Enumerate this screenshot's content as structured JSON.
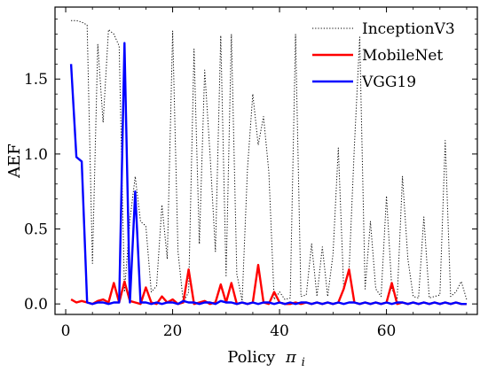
{
  "chart_data": {
    "type": "line",
    "title": "",
    "xlabel": "Policy",
    "xlabel_symbol": "π",
    "xlabel_subscript": "i",
    "ylabel": "AEF",
    "xlim": [
      -2,
      77
    ],
    "ylim": [
      -0.07,
      1.98
    ],
    "xticks": [
      0,
      20,
      40,
      60
    ],
    "yticks": [
      0.0,
      0.5,
      1.0,
      1.5
    ],
    "ytick_labels": [
      "0.0",
      "0.5",
      "1.0",
      "1.5"
    ],
    "grid": false,
    "legend_position": "top-right",
    "x": [
      1,
      2,
      3,
      4,
      5,
      6,
      7,
      8,
      9,
      10,
      11,
      12,
      13,
      14,
      15,
      16,
      17,
      18,
      19,
      20,
      21,
      22,
      23,
      24,
      25,
      26,
      27,
      28,
      29,
      30,
      31,
      32,
      33,
      34,
      35,
      36,
      37,
      38,
      39,
      40,
      41,
      42,
      43,
      44,
      45,
      46,
      47,
      48,
      49,
      50,
      51,
      52,
      53,
      54,
      55,
      56,
      57,
      58,
      59,
      60,
      61,
      62,
      63,
      64,
      65,
      66,
      67,
      68,
      69,
      70,
      71,
      72,
      73,
      74,
      75
    ],
    "series": [
      {
        "name": "InceptionV3",
        "color": "#000000",
        "style": "dotted",
        "values": [
          1.89,
          1.89,
          1.88,
          1.86,
          0.27,
          1.73,
          1.21,
          1.83,
          1.8,
          1.72,
          0.08,
          0.56,
          0.85,
          0.55,
          0.52,
          0.08,
          0.12,
          0.66,
          0.3,
          1.82,
          0.35,
          0.01,
          0.08,
          1.7,
          0.4,
          1.56,
          1.0,
          0.35,
          1.79,
          0.18,
          1.8,
          0.2,
          0.02,
          0.9,
          1.4,
          1.06,
          1.25,
          0.88,
          0.03,
          0.08,
          0.03,
          0.04,
          1.8,
          0.05,
          0.06,
          0.4,
          0.05,
          0.38,
          0.05,
          0.33,
          1.04,
          0.1,
          0.22,
          1.05,
          1.78,
          0.1,
          0.55,
          0.1,
          0.05,
          0.72,
          0.1,
          0.03,
          0.85,
          0.3,
          0.05,
          0.04,
          0.58,
          0.04,
          0.05,
          0.06,
          1.09,
          0.05,
          0.08,
          0.15,
          0.03
        ]
      },
      {
        "name": "MobileNet",
        "color": "#ff0000",
        "style": "solid",
        "values": [
          0.03,
          0.01,
          0.02,
          0.01,
          0.0,
          0.02,
          0.03,
          0.01,
          0.14,
          0.01,
          0.15,
          0.02,
          0.01,
          0.0,
          0.11,
          0.01,
          0.0,
          0.05,
          0.01,
          0.03,
          0.0,
          0.01,
          0.23,
          0.0,
          0.01,
          0.02,
          0.0,
          0.01,
          0.13,
          0.01,
          0.14,
          0.0,
          0.01,
          0.0,
          0.01,
          0.26,
          0.01,
          0.0,
          0.08,
          0.01,
          0.0,
          0.0,
          0.01,
          0.0,
          0.01,
          0.0,
          0.01,
          0.0,
          0.01,
          0.0,
          0.01,
          0.1,
          0.23,
          0.01,
          0.0,
          0.01,
          0.0,
          0.01,
          0.0,
          0.01,
          0.14,
          0.0,
          0.01,
          0.0,
          0.01,
          0.0,
          0.01,
          0.0,
          0.01,
          0.0,
          0.01,
          0.0,
          0.01,
          0.0,
          0.0
        ]
      },
      {
        "name": "VGG19",
        "color": "#0000ff",
        "style": "solid",
        "values": [
          1.6,
          0.98,
          0.95,
          0.01,
          0.0,
          0.01,
          0.01,
          0.0,
          0.01,
          0.01,
          1.74,
          0.01,
          0.75,
          0.01,
          0.01,
          0.0,
          0.01,
          0.0,
          0.01,
          0.01,
          0.0,
          0.02,
          0.01,
          0.01,
          0.0,
          0.01,
          0.01,
          0.0,
          0.02,
          0.01,
          0.01,
          0.0,
          0.01,
          0.0,
          0.01,
          0.0,
          0.01,
          0.01,
          0.0,
          0.01,
          0.0,
          0.01,
          0.0,
          0.01,
          0.01,
          0.0,
          0.01,
          0.0,
          0.01,
          0.0,
          0.01,
          0.0,
          0.01,
          0.01,
          0.0,
          0.01,
          0.0,
          0.01,
          0.0,
          0.01,
          0.0,
          0.01,
          0.01,
          0.0,
          0.01,
          0.0,
          0.01,
          0.0,
          0.01,
          0.0,
          0.01,
          0.0,
          0.01,
          0.0,
          0.0
        ]
      }
    ]
  }
}
